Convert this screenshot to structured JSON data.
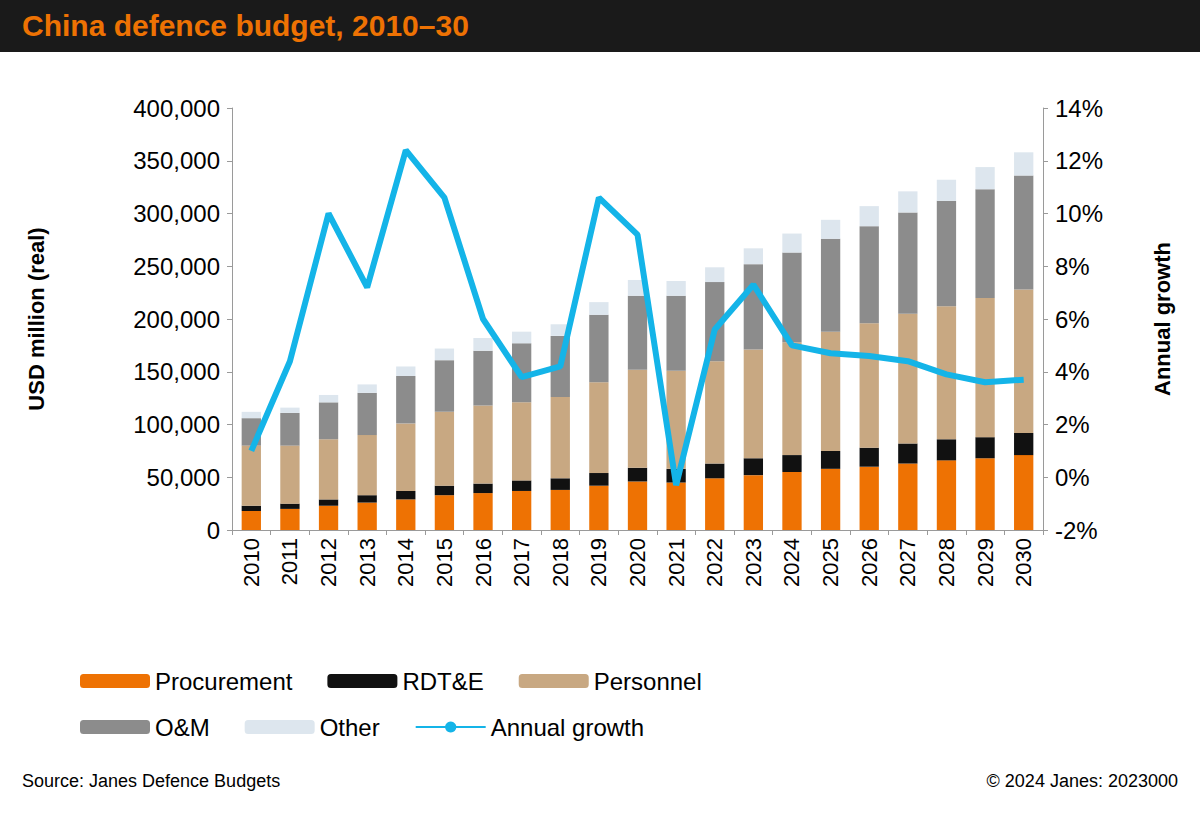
{
  "chart_data": {
    "type": "bar",
    "title": "China defence budget, 2010–30",
    "y_label": "USD million (real)",
    "y2_label": "Annual growth",
    "annotations": [
      "Source: Janes Defence Budgets",
      "© 2024 Janes: 2023000"
    ],
    "stacked": true,
    "grid": false,
    "legend": "bottom",
    "categories": [
      "2010",
      "2011",
      "2012",
      "2013",
      "2014",
      "2015",
      "2016",
      "2017",
      "2018",
      "2019",
      "2020",
      "2021",
      "2022",
      "2023",
      "2024",
      "2025",
      "2026",
      "2027",
      "2028",
      "2029",
      "2030"
    ],
    "ylim": [
      0,
      400000
    ],
    "yticks": [
      0,
      {
        "value": 50000,
        "label": "50,000"
      },
      {
        "value": 100000,
        "label": "100,000"
      },
      {
        "value": 150000,
        "label": "150,000"
      },
      {
        "value": 200000,
        "label": "200,000"
      },
      {
        "value": 250000,
        "label": "250,000"
      },
      {
        "value": 300000,
        "label": "300,000"
      },
      {
        "value": 350000,
        "label": "350,000"
      },
      {
        "value": 400000,
        "label": "400,000"
      }
    ],
    "y2lim": [
      -2,
      14
    ],
    "y2ticks": [
      {
        "value": -2,
        "label": "-2%"
      },
      {
        "value": 0,
        "label": "0%"
      },
      {
        "value": 2,
        "label": "2%"
      },
      {
        "value": 4,
        "label": "4%"
      },
      {
        "value": 6,
        "label": "6%"
      },
      {
        "value": 8,
        "label": "8%"
      },
      {
        "value": 10,
        "label": "10%"
      },
      {
        "value": 12,
        "label": "12%"
      },
      {
        "value": 14,
        "label": "14%"
      }
    ],
    "series": [
      {
        "name": "Procurement",
        "type": "bar",
        "color": "#ee7203",
        "values": [
          18000,
          20000,
          23000,
          26000,
          29000,
          33000,
          35000,
          37000,
          38000,
          42000,
          46000,
          45000,
          49000,
          52000,
          55000,
          58000,
          60000,
          63000,
          66000,
          68000,
          71000
        ]
      },
      {
        "name": "RDT&E",
        "type": "bar",
        "color": "#111111",
        "values": [
          5000,
          5000,
          6000,
          7000,
          8000,
          9000,
          9000,
          10000,
          11000,
          12000,
          13000,
          13000,
          14000,
          16000,
          16000,
          17000,
          18000,
          19000,
          20000,
          20000,
          21000
        ]
      },
      {
        "name": "Personnel",
        "type": "bar",
        "color": "#c8a882",
        "values": [
          57000,
          55000,
          57000,
          57000,
          64000,
          70000,
          74000,
          74000,
          77000,
          86000,
          93000,
          93000,
          97000,
          103000,
          107000,
          113000,
          118000,
          123000,
          126000,
          132000,
          136000
        ]
      },
      {
        "name": "O&M",
        "type": "bar",
        "color": "#8c8c8c",
        "values": [
          26000,
          31000,
          35000,
          40000,
          45000,
          49000,
          52000,
          56000,
          58000,
          64000,
          70000,
          71000,
          75000,
          81000,
          85000,
          88000,
          92000,
          96000,
          100000,
          103000,
          108000
        ]
      },
      {
        "name": "Other",
        "type": "bar",
        "color": "#dde6ee",
        "values": [
          6000,
          5000,
          7000,
          8000,
          9000,
          11000,
          12000,
          11000,
          11000,
          12000,
          15000,
          14000,
          14000,
          15000,
          18000,
          18000,
          19000,
          20000,
          20000,
          21000,
          22000
        ]
      },
      {
        "name": "Annual growth",
        "type": "line",
        "axis": "y2",
        "color": "#14b4e8",
        "values": [
          1.0,
          4.4,
          10.0,
          7.2,
          12.4,
          10.6,
          6.0,
          3.8,
          4.2,
          10.6,
          9.2,
          -0.3,
          5.6,
          7.3,
          5.0,
          4.7,
          4.6,
          4.4,
          3.9,
          3.6,
          3.7
        ]
      }
    ]
  }
}
